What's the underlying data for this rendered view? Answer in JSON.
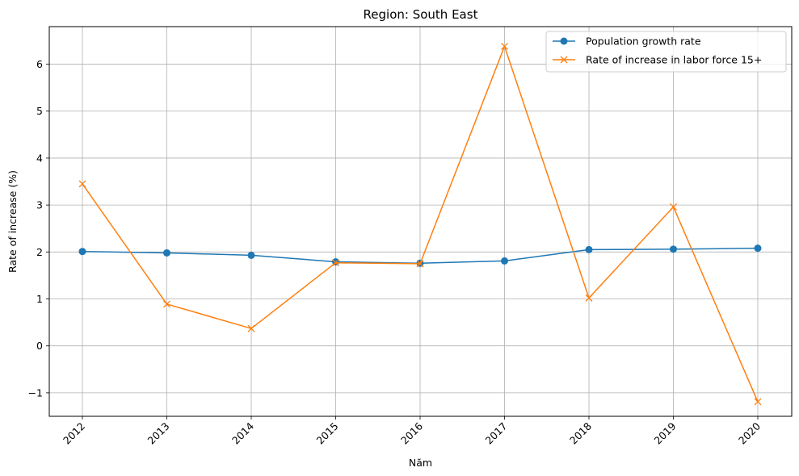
{
  "chart_data": {
    "type": "line",
    "title": "Region: South East",
    "xlabel": "Năm",
    "ylabel": "Rate of increase (%)",
    "x": [
      "2012",
      "2013",
      "2014",
      "2015",
      "2016",
      "2017",
      "2018",
      "2019",
      "2020"
    ],
    "ylim": [
      -1.5,
      6.8
    ],
    "yticks": [
      -1,
      0,
      1,
      2,
      3,
      4,
      5,
      6
    ],
    "ytick_labels": [
      "−1",
      "0",
      "1",
      "2",
      "3",
      "4",
      "5",
      "6"
    ],
    "grid": true,
    "legend_position": "top-right",
    "series": [
      {
        "name": "Population growth rate",
        "color": "#1f77b4",
        "marker": "circle",
        "values": [
          2.01,
          1.98,
          1.93,
          1.79,
          1.76,
          1.81,
          2.05,
          2.06,
          2.08
        ]
      },
      {
        "name": "Rate of increase in labor force 15+",
        "color": "#ff7f0e",
        "marker": "x",
        "values": [
          3.45,
          0.89,
          0.37,
          1.77,
          1.75,
          6.38,
          1.02,
          2.96,
          -1.19
        ]
      }
    ]
  }
}
